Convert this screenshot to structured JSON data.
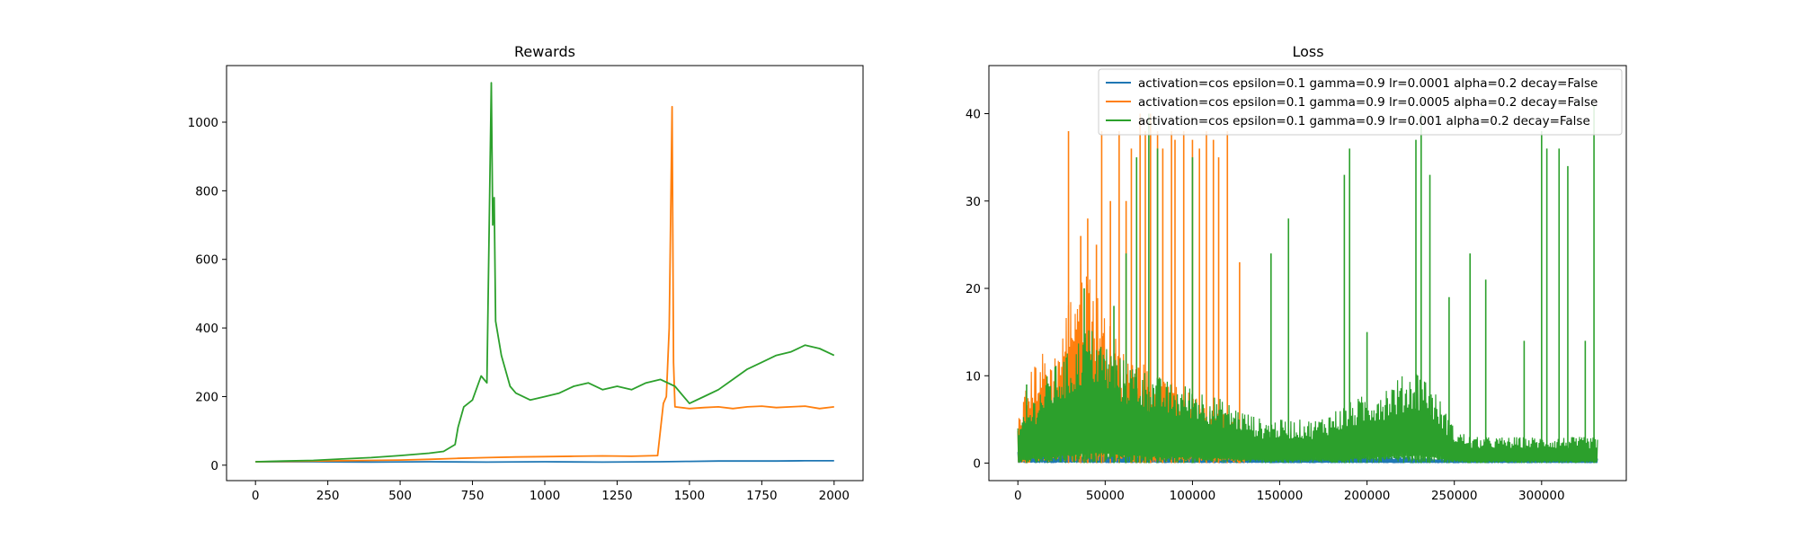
{
  "colors": {
    "series1": "#1f77b4",
    "series2": "#ff7f0e",
    "series3": "#2ca02c",
    "axes": "#000000",
    "background": "#ffffff"
  },
  "chart_data": [
    {
      "type": "line",
      "title": "Rewards",
      "xlabel": "",
      "ylabel": "",
      "xlim": [
        -100,
        2100
      ],
      "ylim": [
        -45,
        1165
      ],
      "xticks": [
        0,
        250,
        500,
        750,
        1000,
        1250,
        1500,
        1750,
        2000
      ],
      "yticks": [
        0,
        200,
        400,
        600,
        800,
        1000
      ],
      "grid": false,
      "legend": null,
      "series": [
        {
          "color": "#1f77b4",
          "points": [
            [
              0,
              10
            ],
            [
              200,
              10
            ],
            [
              400,
              9
            ],
            [
              600,
              10
            ],
            [
              800,
              9
            ],
            [
              1000,
              10
            ],
            [
              1200,
              9
            ],
            [
              1400,
              10
            ],
            [
              1500,
              11
            ],
            [
              1600,
              12
            ],
            [
              1700,
              12
            ],
            [
              1800,
              12
            ],
            [
              1900,
              13
            ],
            [
              2000,
              13
            ]
          ]
        },
        {
          "color": "#ff7f0e",
          "points": [
            [
              0,
              10
            ],
            [
              100,
              11
            ],
            [
              200,
              12
            ],
            [
              300,
              13
            ],
            [
              400,
              14
            ],
            [
              500,
              15
            ],
            [
              600,
              17
            ],
            [
              700,
              20
            ],
            [
              800,
              22
            ],
            [
              900,
              24
            ],
            [
              1000,
              25
            ],
            [
              1100,
              26
            ],
            [
              1200,
              27
            ],
            [
              1300,
              26
            ],
            [
              1390,
              28
            ],
            [
              1410,
              180
            ],
            [
              1420,
              200
            ],
            [
              1430,
              400
            ],
            [
              1440,
              1045
            ],
            [
              1445,
              300
            ],
            [
              1450,
              170
            ],
            [
              1500,
              165
            ],
            [
              1550,
              168
            ],
            [
              1600,
              170
            ],
            [
              1650,
              165
            ],
            [
              1700,
              170
            ],
            [
              1750,
              172
            ],
            [
              1800,
              168
            ],
            [
              1850,
              170
            ],
            [
              1900,
              172
            ],
            [
              1950,
              165
            ],
            [
              2000,
              170
            ]
          ]
        },
        {
          "color": "#2ca02c",
          "points": [
            [
              0,
              10
            ],
            [
              100,
              12
            ],
            [
              200,
              14
            ],
            [
              300,
              18
            ],
            [
              400,
              22
            ],
            [
              500,
              28
            ],
            [
              600,
              35
            ],
            [
              650,
              40
            ],
            [
              690,
              60
            ],
            [
              700,
              110
            ],
            [
              720,
              170
            ],
            [
              750,
              190
            ],
            [
              780,
              260
            ],
            [
              800,
              240
            ],
            [
              815,
              1115
            ],
            [
              820,
              700
            ],
            [
              825,
              780
            ],
            [
              830,
              420
            ],
            [
              850,
              320
            ],
            [
              880,
              230
            ],
            [
              900,
              210
            ],
            [
              950,
              190
            ],
            [
              1000,
              200
            ],
            [
              1050,
              210
            ],
            [
              1100,
              230
            ],
            [
              1150,
              240
            ],
            [
              1200,
              220
            ],
            [
              1250,
              230
            ],
            [
              1300,
              220
            ],
            [
              1350,
              240
            ],
            [
              1400,
              250
            ],
            [
              1450,
              230
            ],
            [
              1500,
              180
            ],
            [
              1550,
              200
            ],
            [
              1600,
              220
            ],
            [
              1650,
              250
            ],
            [
              1700,
              280
            ],
            [
              1750,
              300
            ],
            [
              1800,
              320
            ],
            [
              1850,
              330
            ],
            [
              1900,
              350
            ],
            [
              1950,
              340
            ],
            [
              2000,
              320
            ]
          ]
        }
      ]
    },
    {
      "type": "line",
      "title": "Loss",
      "xlabel": "",
      "ylabel": "",
      "xlim": [
        -16600,
        348500
      ],
      "ylim": [
        -2,
        45.5
      ],
      "xticks": [
        0,
        50000,
        100000,
        150000,
        200000,
        250000,
        300000
      ],
      "yticks": [
        0,
        10,
        20,
        30,
        40
      ],
      "grid": false,
      "legend": {
        "position": "top-right",
        "entries": [
          "activation=cos epsilon=0.1 gamma=0.9 lr=0.0001 alpha=0.2 decay=False",
          "activation=cos epsilon=0.1 gamma=0.9 lr=0.0005 alpha=0.2 decay=False",
          "activation=cos epsilon=0.1 gamma=0.9 lr=0.001 alpha=0.2 decay=False"
        ]
      },
      "series": [
        {
          "name": "activation=cos epsilon=0.1 gamma=0.9 lr=0.0001 alpha=0.2 decay=False",
          "color": "#1f77b4",
          "envelope": [
            [
              0,
              1.5
            ],
            [
              50000,
              1.2
            ],
            [
              100000,
              1.0
            ],
            [
              150000,
              0.8
            ],
            [
              200000,
              0.8
            ],
            [
              250000,
              0.7
            ],
            [
              300000,
              0.7
            ],
            [
              332000,
              0.6
            ]
          ],
          "spikes": []
        },
        {
          "name": "activation=cos epsilon=0.1 gamma=0.9 lr=0.0005 alpha=0.2 decay=False",
          "color": "#ff7f0e",
          "envelope": [
            [
              0,
              5
            ],
            [
              5000,
              9
            ],
            [
              10000,
              12
            ],
            [
              15000,
              13
            ],
            [
              20000,
              12
            ],
            [
              25000,
              15
            ],
            [
              30000,
              20
            ],
            [
              35000,
              23
            ],
            [
              40000,
              24
            ],
            [
              45000,
              20
            ],
            [
              50000,
              17
            ],
            [
              55000,
              15
            ],
            [
              60000,
              13
            ],
            [
              70000,
              12
            ],
            [
              80000,
              10
            ],
            [
              90000,
              9
            ],
            [
              100000,
              8
            ],
            [
              110000,
              7
            ],
            [
              120000,
              6
            ],
            [
              130000,
              3
            ]
          ],
          "spikes": [
            [
              29000,
              38
            ],
            [
              36000,
              26
            ],
            [
              40000,
              28
            ],
            [
              45000,
              25
            ],
            [
              48000,
              38
            ],
            [
              53000,
              30
            ],
            [
              58000,
              38
            ],
            [
              62000,
              30
            ],
            [
              65000,
              36
            ],
            [
              70000,
              40
            ],
            [
              73000,
              38
            ],
            [
              76000,
              40
            ],
            [
              80000,
              38
            ],
            [
              83000,
              36
            ],
            [
              88000,
              38
            ],
            [
              90000,
              37
            ],
            [
              95000,
              38
            ],
            [
              100000,
              37
            ],
            [
              104000,
              36
            ],
            [
              108000,
              38
            ],
            [
              112000,
              37
            ],
            [
              115000,
              35
            ],
            [
              120000,
              38
            ],
            [
              127000,
              23
            ]
          ]
        },
        {
          "name": "activation=cos epsilon=0.1 gamma=0.9 lr=0.001 alpha=0.2 decay=False",
          "color": "#2ca02c",
          "envelope": [
            [
              0,
              4
            ],
            [
              10000,
              8
            ],
            [
              20000,
              11
            ],
            [
              30000,
              13
            ],
            [
              40000,
              16
            ],
            [
              50000,
              14
            ],
            [
              60000,
              12
            ],
            [
              70000,
              11
            ],
            [
              80000,
              10
            ],
            [
              90000,
              9
            ],
            [
              100000,
              9
            ],
            [
              110000,
              8
            ],
            [
              120000,
              7
            ],
            [
              130000,
              6
            ],
            [
              140000,
              5
            ],
            [
              150000,
              5
            ],
            [
              160000,
              5
            ],
            [
              170000,
              5
            ],
            [
              180000,
              6
            ],
            [
              190000,
              7
            ],
            [
              200000,
              8
            ],
            [
              210000,
              9
            ],
            [
              220000,
              10
            ],
            [
              230000,
              11
            ],
            [
              240000,
              8
            ],
            [
              250000,
              4
            ],
            [
              260000,
              3
            ],
            [
              270000,
              3
            ],
            [
              280000,
              3
            ],
            [
              290000,
              3
            ],
            [
              300000,
              3
            ],
            [
              310000,
              3
            ],
            [
              320000,
              3
            ],
            [
              332000,
              3
            ]
          ],
          "spikes": [
            [
              5000,
              9
            ],
            [
              38000,
              20
            ],
            [
              55000,
              18
            ],
            [
              62000,
              24
            ],
            [
              68000,
              35
            ],
            [
              75000,
              40
            ],
            [
              80000,
              36
            ],
            [
              100000,
              35
            ],
            [
              145000,
              24
            ],
            [
              155000,
              28
            ],
            [
              187000,
              33
            ],
            [
              190000,
              36
            ],
            [
              200000,
              15
            ],
            [
              228000,
              37
            ],
            [
              231000,
              40
            ],
            [
              236000,
              33
            ],
            [
              247000,
              19
            ],
            [
              259000,
              24
            ],
            [
              268000,
              21
            ],
            [
              290000,
              14
            ],
            [
              300000,
              38
            ],
            [
              303000,
              36
            ],
            [
              310000,
              36
            ],
            [
              315000,
              34
            ],
            [
              325000,
              14
            ],
            [
              330000,
              41
            ]
          ]
        }
      ]
    }
  ]
}
